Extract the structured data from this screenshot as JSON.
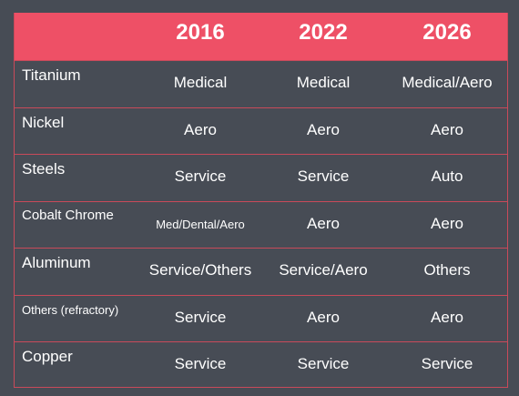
{
  "header": {
    "years": [
      "2016",
      "2022",
      "2026"
    ]
  },
  "rows": [
    {
      "label": "Titanium",
      "values": [
        "Medical",
        "Medical",
        "Medical/Aero"
      ]
    },
    {
      "label": "Nickel",
      "values": [
        "Aero",
        "Aero",
        "Aero"
      ]
    },
    {
      "label": "Steels",
      "values": [
        "Service",
        "Service",
        "Auto"
      ]
    },
    {
      "label": "Cobalt Chrome",
      "values": [
        "Med/Dental/Aero",
        "Aero",
        "Aero"
      ]
    },
    {
      "label": "Aluminum",
      "values": [
        "Service/Others",
        "Service/Aero",
        "Others"
      ]
    },
    {
      "label": "Others (refractory)",
      "values": [
        "Service",
        "Aero",
        "Aero"
      ]
    },
    {
      "label": "Copper",
      "values": [
        "Service",
        "Service",
        "Service"
      ]
    }
  ],
  "colors": {
    "background": "#474c55",
    "header": "#ee5066",
    "grid_line": "#c94a5a",
    "text": "#ffffff"
  }
}
